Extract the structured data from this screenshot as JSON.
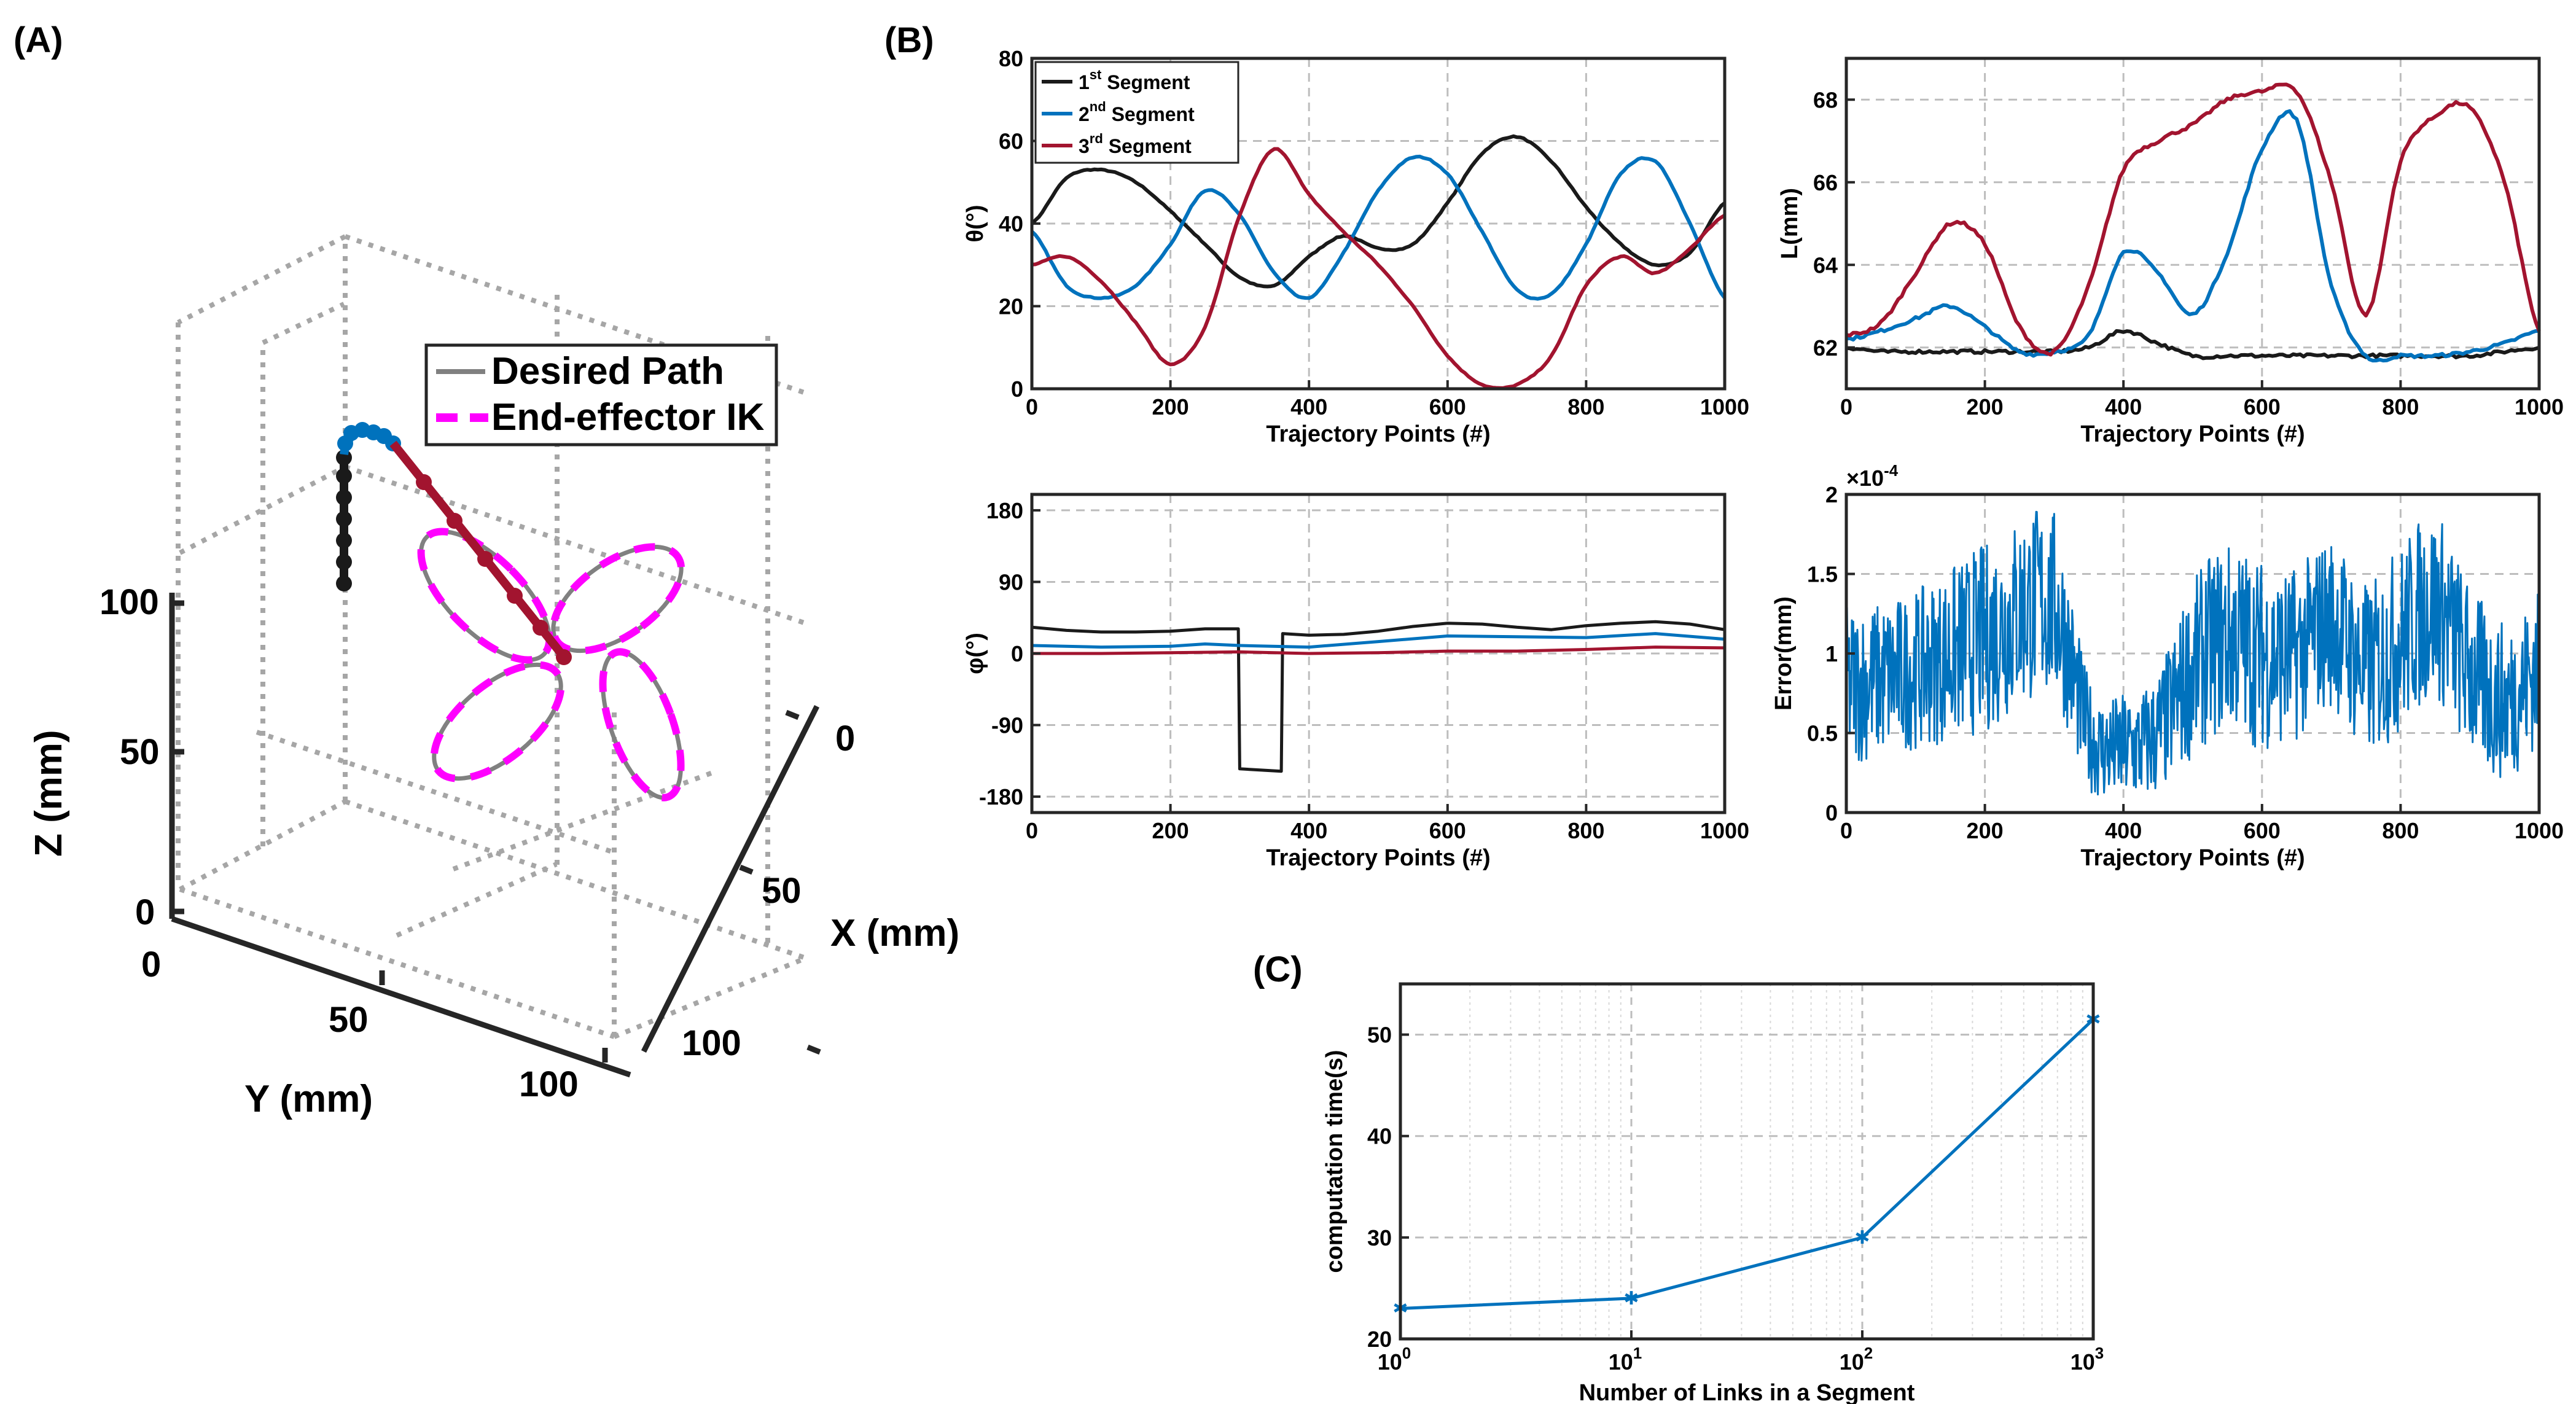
{
  "panel_labels": {
    "a": "(A)",
    "b": "(B)",
    "c": "(C)"
  },
  "colors": {
    "black": "#1a1a1a",
    "blue": "#0072bd",
    "red": "#a2142f",
    "magenta": "#ff00ff",
    "gray": "#808080",
    "grid": "#bdbdbd"
  },
  "chart_data": [
    {
      "id": "panel_A",
      "type": "line3d",
      "legend": [
        "Desired Path",
        "End-effector IK"
      ],
      "legend_position": "top-right",
      "x_label": "X (mm)",
      "y_label": "Y (mm)",
      "z_label": "Z (mm)",
      "x_ticks": [
        "0",
        "50",
        "100"
      ],
      "y_ticks": [
        "0",
        "50",
        "100"
      ],
      "z_ticks": [
        "0",
        "50",
        "100"
      ],
      "x_range": [
        0,
        120
      ],
      "y_range": [
        0,
        120
      ],
      "z_range": [
        0,
        170
      ],
      "desired_path": "four-petal flower curve centered at X≈55 mm, Y≈55 mm, Z≈100 mm",
      "robot_segments": [
        {
          "name": "1st Segment",
          "color": "black"
        },
        {
          "name": "2nd Segment",
          "color": "blue"
        },
        {
          "name": "3rd Segment",
          "color": "red"
        }
      ]
    },
    {
      "id": "theta",
      "type": "line",
      "xlabel": "Trajectory Points (#)",
      "ylabel": "θ(°)",
      "xlim": [
        0,
        1000
      ],
      "ylim": [
        0,
        80
      ],
      "xticks": [
        0,
        200,
        400,
        600,
        800,
        1000
      ],
      "yticks": [
        0,
        20,
        40,
        60,
        80
      ],
      "legend": [
        {
          "pre": "1",
          "sup": "st",
          "post": " Segment"
        },
        {
          "pre": "2",
          "sup": "nd",
          "post": " Segment"
        },
        {
          "pre": "3",
          "sup": "rd",
          "post": " Segment"
        }
      ],
      "legend_position": "top-left",
      "x": [
        0,
        50,
        100,
        150,
        200,
        250,
        300,
        350,
        400,
        450,
        500,
        550,
        600,
        650,
        700,
        750,
        800,
        850,
        900,
        950,
        1000
      ],
      "series": [
        {
          "name": "1st Segment",
          "color": "black",
          "values": [
            40,
            51,
            53,
            50,
            43,
            35,
            27,
            25,
            32,
            37,
            34,
            35,
            45,
            57,
            61,
            55,
            44,
            35,
            30,
            33,
            45
          ]
        },
        {
          "name": "2nd Segment",
          "color": "blue",
          "values": [
            38,
            25,
            22,
            25,
            35,
            48,
            42,
            28,
            22,
            33,
            48,
            56,
            52,
            38,
            24,
            23,
            35,
            52,
            55,
            40,
            22
          ]
        },
        {
          "name": "3rd Segment",
          "color": "red",
          "values": [
            30,
            32,
            26,
            16,
            6,
            15,
            42,
            58,
            47,
            38,
            30,
            20,
            8,
            1,
            1,
            8,
            25,
            32,
            28,
            34,
            42
          ]
        }
      ]
    },
    {
      "id": "length",
      "type": "line",
      "xlabel": "Trajectory Points (#)",
      "ylabel": "L(mm)",
      "xlim": [
        0,
        1000
      ],
      "ylim": [
        61,
        69
      ],
      "xticks": [
        0,
        200,
        400,
        600,
        800,
        1000
      ],
      "yticks": [
        62,
        64,
        66,
        68
      ],
      "x": [
        0,
        50,
        100,
        150,
        200,
        250,
        300,
        350,
        400,
        450,
        500,
        550,
        600,
        650,
        700,
        750,
        800,
        850,
        900,
        950,
        1000
      ],
      "series": [
        {
          "name": "1st Segment",
          "color": "black",
          "values": [
            62.0,
            61.9,
            61.9,
            61.9,
            61.9,
            61.9,
            61.9,
            62.0,
            62.4,
            62.1,
            61.8,
            61.8,
            61.8,
            61.8,
            61.8,
            61.8,
            61.8,
            61.8,
            61.8,
            61.9,
            62.0
          ]
        },
        {
          "name": "2nd Segment",
          "color": "blue",
          "values": [
            62.2,
            62.4,
            62.7,
            63.0,
            62.5,
            61.9,
            61.9,
            62.3,
            64.3,
            63.8,
            62.8,
            64.3,
            66.8,
            67.5,
            63.5,
            61.8,
            61.8,
            61.8,
            61.9,
            62.1,
            62.4
          ]
        },
        {
          "name": "3rd Segment",
          "color": "red",
          "values": [
            62.3,
            62.6,
            63.8,
            65.0,
            64.5,
            62.5,
            61.9,
            63.5,
            66.3,
            67.0,
            67.4,
            68.0,
            68.2,
            68.2,
            66.0,
            62.8,
            66.5,
            67.6,
            67.8,
            66.0,
            62.4
          ]
        }
      ]
    },
    {
      "id": "phi",
      "type": "line",
      "xlabel": "Trajectory Points (#)",
      "ylabel": "φ(°)",
      "xlim": [
        0,
        1000
      ],
      "ylim": [
        -200,
        200
      ],
      "xticks": [
        0,
        200,
        400,
        600,
        800,
        1000
      ],
      "yticks": [
        -180,
        -90,
        0,
        90,
        180
      ],
      "series": [
        {
          "name": "1st Segment",
          "color": "black",
          "x": [
            0,
            50,
            100,
            150,
            200,
            250,
            298,
            300,
            360,
            362,
            400,
            450,
            500,
            550,
            600,
            650,
            700,
            750,
            800,
            850,
            900,
            950,
            1000
          ],
          "values": [
            33,
            29,
            27,
            27,
            28,
            31,
            31,
            -145,
            -148,
            25,
            23,
            24,
            28,
            34,
            38,
            37,
            33,
            30,
            35,
            38,
            40,
            37,
            30
          ]
        },
        {
          "name": "2nd Segment",
          "color": "blue",
          "x": [
            0,
            100,
            200,
            250,
            300,
            400,
            500,
            600,
            700,
            800,
            900,
            1000
          ],
          "values": [
            10,
            8,
            9,
            12,
            10,
            8,
            15,
            22,
            21,
            20,
            25,
            18
          ]
        },
        {
          "name": "3rd Segment",
          "color": "red",
          "x": [
            0,
            100,
            200,
            300,
            400,
            500,
            600,
            700,
            800,
            900,
            1000
          ],
          "values": [
            0,
            0,
            1,
            2,
            0,
            1,
            3,
            3,
            5,
            8,
            7
          ]
        }
      ]
    },
    {
      "id": "error",
      "type": "line",
      "xlabel": "Trajectory Points (#)",
      "ylabel": "Error(mm)",
      "exponent_base": "×10",
      "exponent_power": "-4",
      "xlim": [
        0,
        1000
      ],
      "ylim": [
        0,
        2
      ],
      "xticks": [
        0,
        200,
        400,
        600,
        800,
        1000
      ],
      "yticks": [
        0,
        0.5,
        1,
        1.5,
        2
      ],
      "series": [
        {
          "name": "Error",
          "color": "blue",
          "description": "noisy error trace, ×10^-4 mm",
          "envelope_x": [
            0,
            100,
            200,
            300,
            350,
            400,
            450,
            500,
            550,
            600,
            650,
            700,
            750,
            800,
            850,
            900,
            950,
            1000
          ],
          "envelope_mean": [
            0.8,
            0.9,
            1.1,
            1.3,
            0.5,
            0.4,
            0.5,
            0.9,
            1.1,
            1.0,
            1.0,
            1.2,
            0.9,
            1.1,
            1.3,
            0.9,
            0.7,
            0.9
          ],
          "envelope_amp": [
            0.5,
            0.5,
            0.6,
            0.6,
            0.35,
            0.35,
            0.4,
            0.55,
            0.6,
            0.6,
            0.55,
            0.55,
            0.55,
            0.6,
            0.6,
            0.55,
            0.5,
            0.5
          ]
        }
      ]
    },
    {
      "id": "panel_C",
      "type": "line",
      "xscale": "log",
      "xlabel": "Number of Links in a Segment",
      "ylabel": "computation time(s)",
      "xlim": [
        1,
        1000
      ],
      "ylim": [
        20,
        55
      ],
      "xtick_base": "10",
      "xtick_powers": [
        "0",
        "1",
        "2",
        "3"
      ],
      "yticks": [
        20,
        30,
        40,
        50
      ],
      "x": [
        1,
        10,
        100,
        1000
      ],
      "series": [
        {
          "name": "computation time",
          "color": "blue",
          "marker": "*",
          "values": [
            23,
            24,
            30,
            51.5
          ]
        }
      ]
    }
  ]
}
